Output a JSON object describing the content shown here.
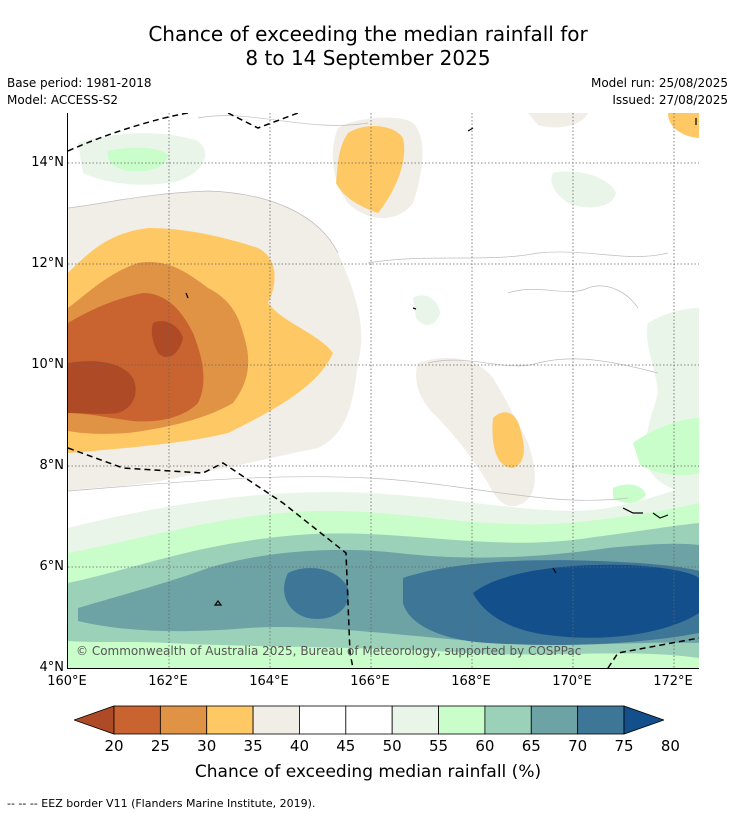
{
  "title": {
    "line1": "Chance of exceeding the median rainfall for",
    "line2": "8 to 14 September 2025"
  },
  "meta": {
    "base_period": "Base period: 1981-2018",
    "model": "Model: ACCESS-S2",
    "model_run": "Model run: 25/08/2025",
    "issued": "Issued: 27/08/2025"
  },
  "map": {
    "copyright": "© Commonwealth of Australia 2025, Bureau of Meteorology, supported by COSPPac",
    "lat_labels": [
      "14°N",
      "12°N",
      "10°N",
      "8°N",
      "6°N",
      "4°N"
    ],
    "lon_labels": [
      "160°E",
      "162°E",
      "164°E",
      "166°E",
      "168°E",
      "170°E",
      "172°E"
    ],
    "extent": {
      "lon": [
        160,
        172.5
      ],
      "lat": [
        4,
        15
      ]
    },
    "gridlines": true
  },
  "colorbar": {
    "ticks": [
      "20",
      "25",
      "30",
      "35",
      "40",
      "45",
      "50",
      "55",
      "60",
      "65",
      "70",
      "75",
      "80"
    ],
    "colors": [
      "#ae4b26",
      "#c9632f",
      "#e09245",
      "#fec965",
      "#f1ede7",
      "#ffffff",
      "#ffffff",
      "#e9f5e9",
      "#c9fdc9",
      "#9bd1b9",
      "#6ea3a5",
      "#3e7698",
      "#134f8b"
    ],
    "label": "Chance of exceeding median rainfall (%)"
  },
  "footnote": "--  --  -- EEZ border V11 (Flanders Marine Institute, 2019)."
}
